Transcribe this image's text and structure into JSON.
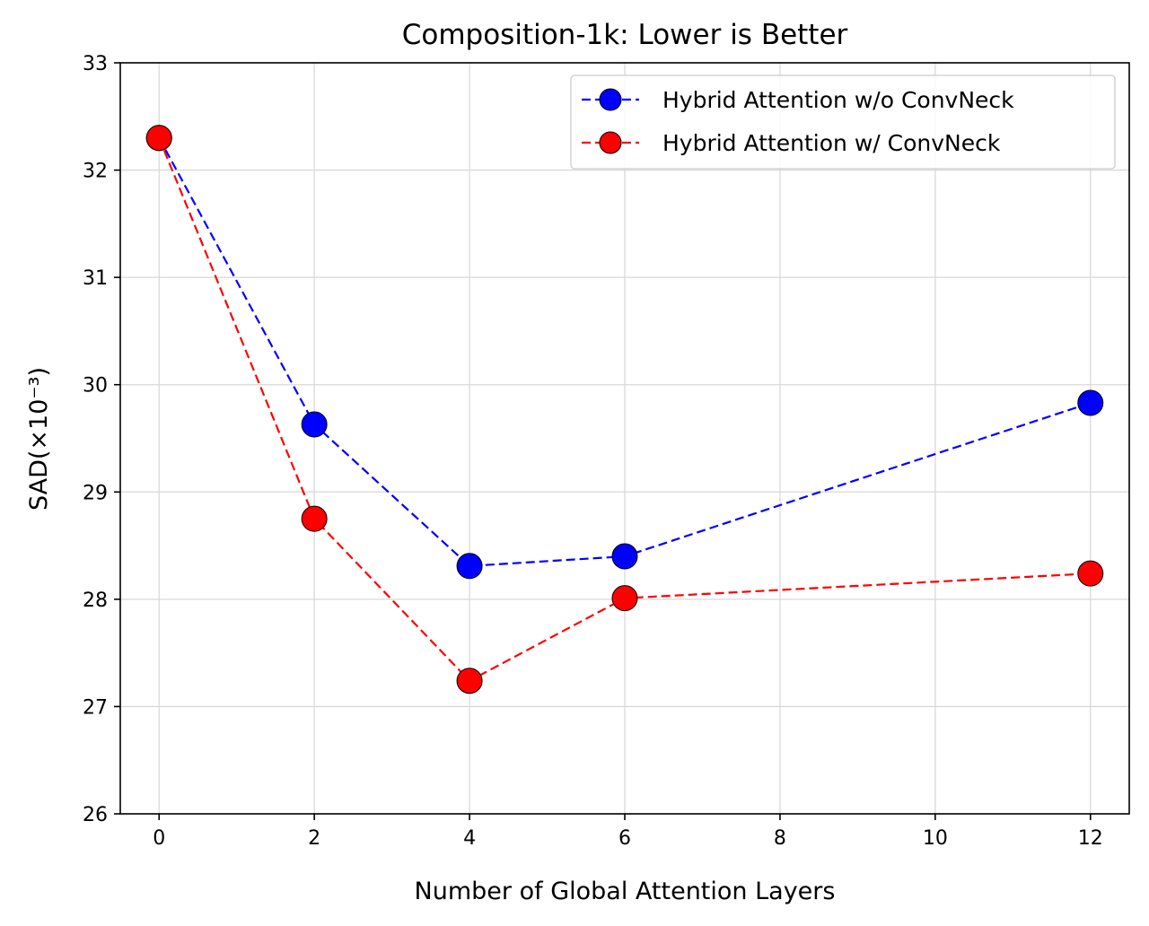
{
  "chart_data": {
    "type": "line",
    "title": "Composition-1k: Lower is Better",
    "xlabel": "Number of Global Attention Layers",
    "ylabel": "SAD(×10⁻³)",
    "xlim": [
      -0.5,
      12.5
    ],
    "ylim": [
      26,
      33
    ],
    "x_ticks": [
      0,
      2,
      4,
      6,
      8,
      10,
      12
    ],
    "y_ticks": [
      26,
      27,
      28,
      29,
      30,
      31,
      32,
      33
    ],
    "grid": true,
    "legend_position": "top-right",
    "x": [
      0,
      2,
      4,
      6,
      12
    ],
    "series": [
      {
        "name": "Hybrid Attention w/o ConvNeck",
        "color": "#0000ff",
        "linestyle": "dashed",
        "marker": "circle",
        "values": [
          32.3,
          29.63,
          28.31,
          28.4,
          29.83
        ]
      },
      {
        "name": "Hybrid Attention w/ ConvNeck",
        "color": "#ff0000",
        "linestyle": "dashed",
        "marker": "circle",
        "values": [
          32.3,
          28.75,
          27.24,
          28.01,
          28.24
        ]
      }
    ]
  }
}
